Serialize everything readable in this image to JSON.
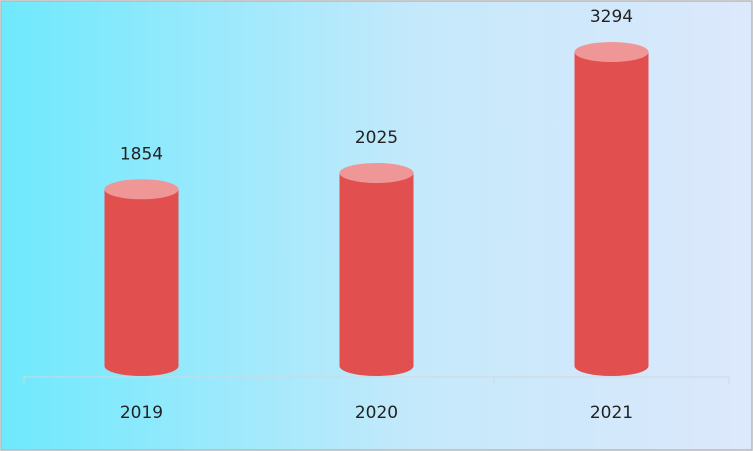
{
  "chart_data": {
    "type": "bar",
    "categories": [
      "2019",
      "2020",
      "2021"
    ],
    "values": [
      1854,
      2025,
      3294
    ],
    "color": "#e24f4f",
    "top_color": "#ef9797"
  }
}
